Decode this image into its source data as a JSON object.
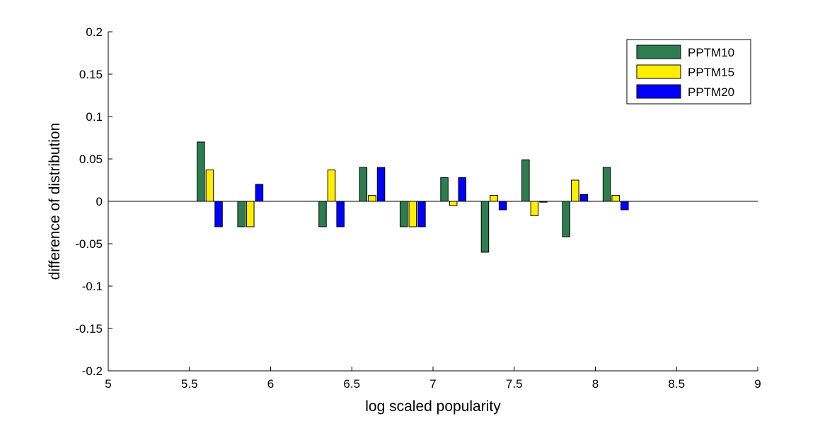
{
  "chart_data": {
    "type": "bar",
    "xlabel": "log scaled popularity",
    "ylabel": "difference of distribution",
    "xlim": [
      5,
      9
    ],
    "ylim": [
      -0.2,
      0.2
    ],
    "x_ticks": [
      5,
      5.5,
      6,
      6.5,
      7,
      7.5,
      8,
      8.5,
      9
    ],
    "x_tick_labels": [
      "5",
      "5.5",
      "6",
      "6.5",
      "7",
      "7.5",
      "8",
      "8.5",
      "9"
    ],
    "y_ticks": [
      -0.2,
      -0.15,
      -0.1,
      -0.05,
      0,
      0.05,
      0.1,
      0.15,
      0.2
    ],
    "y_tick_labels": [
      "-0.2",
      "-0.15",
      "-0.1",
      "-0.05",
      "0",
      "0.05",
      "0.1",
      "0.15",
      "0.2"
    ],
    "grid": false,
    "legend_position": "top-right",
    "x": [
      5.625,
      5.875,
      6.375,
      6.625,
      6.875,
      7.125,
      7.375,
      7.625,
      7.875,
      8.125
    ],
    "series": [
      {
        "name": "PPTM10",
        "color": "#2e7d50",
        "values": [
          0.07,
          -0.03,
          -0.03,
          0.04,
          -0.03,
          0.028,
          -0.06,
          0.049,
          -0.042,
          0.04
        ]
      },
      {
        "name": "PPTM15",
        "color": "#ffee00",
        "values": [
          0.037,
          -0.03,
          0.037,
          0.007,
          -0.03,
          -0.005,
          0.007,
          -0.017,
          0.025,
          0.007
        ]
      },
      {
        "name": "PPTM20",
        "color": "#0000ff",
        "values": [
          -0.03,
          0.02,
          -0.03,
          0.04,
          -0.03,
          0.028,
          -0.01,
          -0.001,
          0.008,
          -0.01
        ]
      }
    ]
  }
}
